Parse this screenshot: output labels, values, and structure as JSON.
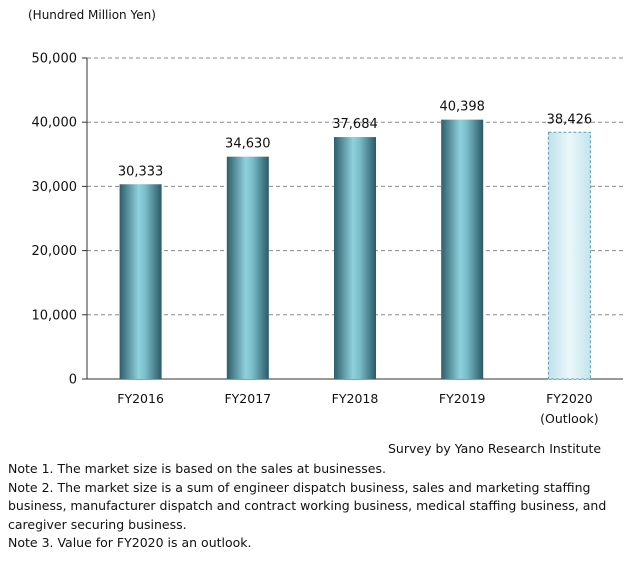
{
  "chart_data": {
    "type": "bar",
    "ylabel": "(Hundred Million Yen)",
    "categories": [
      "FY2016",
      "FY2017",
      "FY2018",
      "FY2019",
      "FY2020"
    ],
    "category_sublabels": [
      "",
      "",
      "",
      "",
      "(Outlook)"
    ],
    "values": [
      30333,
      34630,
      37684,
      40398,
      38426
    ],
    "value_labels": [
      "30,333",
      "34,630",
      "37,684",
      "40,398",
      "38,426"
    ],
    "outlook_flags": [
      false,
      false,
      false,
      false,
      true
    ],
    "ylim": [
      0,
      50000
    ],
    "yticks": [
      0,
      10000,
      20000,
      30000,
      40000,
      50000
    ],
    "ytick_labels": [
      "0",
      "10,000",
      "20,000",
      "30,000",
      "40,000",
      "50,000"
    ],
    "grid": true,
    "colors": {
      "actual": "#3f8c96",
      "outlook": "#cfe9f0"
    }
  },
  "source": "Survey by Yano Research Institute",
  "notes": [
    "Note 1. The market size is based on the sales at businesses.",
    "Note 2. The market size is a sum of engineer dispatch business, sales and marketing staffing business, manufacturer dispatch and contract working business, medical staffing business, and caregiver securing business.",
    "Note 3. Value for FY2020 is an outlook."
  ]
}
